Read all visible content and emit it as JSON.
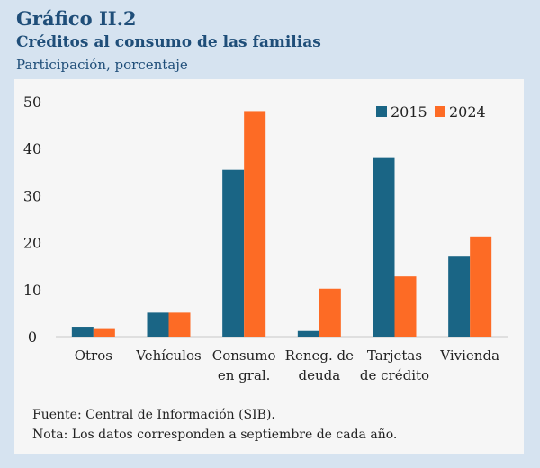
{
  "header": {
    "title": "Gráfico II.2",
    "subtitle": "Créditos al consumo de las familias",
    "units": "Participación, porcentaje"
  },
  "chart_data": {
    "type": "bar",
    "categories": [
      [
        "Otros"
      ],
      [
        "Vehículos"
      ],
      [
        "Consumo",
        "en gral."
      ],
      [
        "Reneg. de",
        "deuda"
      ],
      [
        "Tarjetas",
        "de crédito"
      ],
      [
        "Vivienda"
      ]
    ],
    "series": [
      {
        "name": "2015",
        "color": "#1a6585",
        "values": [
          2.1,
          5.1,
          35.5,
          1.2,
          38.0,
          17.2
        ]
      },
      {
        "name": "2024",
        "color": "#fd6b25",
        "values": [
          1.8,
          5.1,
          48.0,
          10.2,
          12.8,
          21.3
        ]
      }
    ],
    "y_ticks": [
      0,
      10,
      20,
      30,
      40,
      50
    ],
    "ylim": [
      0,
      50
    ],
    "legend_position": "top-right",
    "xlabel": "",
    "ylabel": ""
  },
  "footer": {
    "source": "Fuente: Central de Información (SIB).",
    "note": "Nota: Los datos corresponden a septiembre de cada año."
  }
}
